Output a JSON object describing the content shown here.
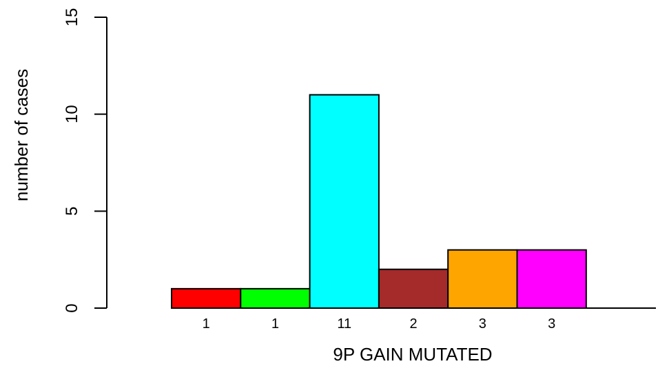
{
  "chart_data": {
    "type": "bar",
    "xlabel": "9P GAIN MUTATED",
    "ylabel": "number of cases",
    "ylim": [
      0,
      15
    ],
    "yticks": [
      0,
      5,
      10,
      15
    ],
    "grid": false,
    "categories": [
      "1",
      "1",
      "11",
      "2",
      "3",
      "3"
    ],
    "values": [
      1,
      1,
      11,
      2,
      3,
      3
    ],
    "colors": [
      "#ff0000",
      "#00ff00",
      "#00ffff",
      "#a52a2a",
      "#ffa500",
      "#ff00ff"
    ]
  }
}
